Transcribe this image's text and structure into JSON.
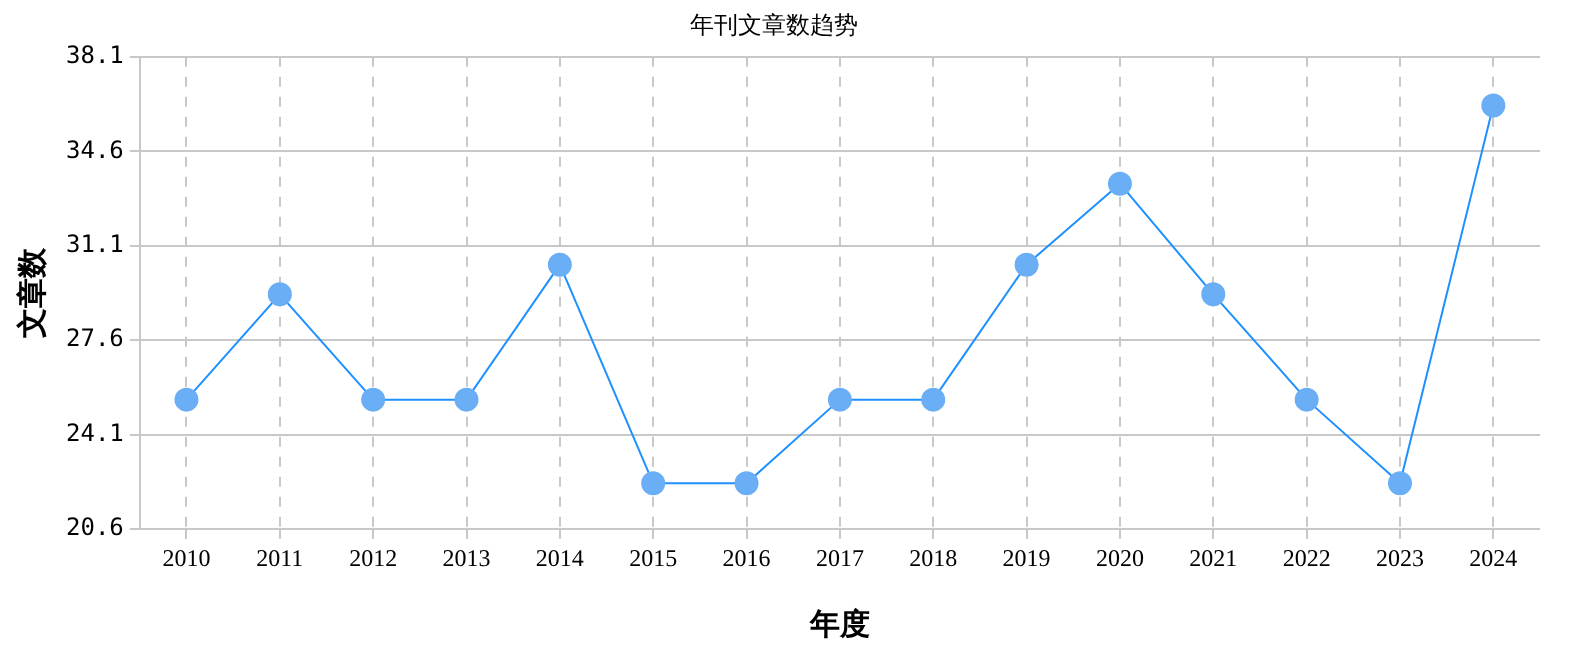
{
  "chart_data": {
    "type": "line",
    "title": "年刊文章数趋势",
    "xlabel": "年度",
    "ylabel": "文章数",
    "categories": [
      "2010",
      "2011",
      "2012",
      "2013",
      "2014",
      "2015",
      "2016",
      "2017",
      "2018",
      "2019",
      "2020",
      "2021",
      "2022",
      "2023",
      "2024"
    ],
    "series": [
      {
        "color": "#1e90ff",
        "values": [
          25.4,
          29.3,
          25.4,
          25.4,
          30.4,
          22.3,
          22.3,
          25.4,
          25.4,
          30.4,
          33.4,
          29.3,
          25.4,
          22.3,
          36.3
        ]
      }
    ],
    "ylim": [
      20.6,
      38.1
    ],
    "yticks": [
      20.6,
      24.1,
      27.6,
      31.1,
      34.6,
      38.1
    ],
    "grid": true,
    "legend": false,
    "marker": "circle",
    "line_style": "solid"
  }
}
